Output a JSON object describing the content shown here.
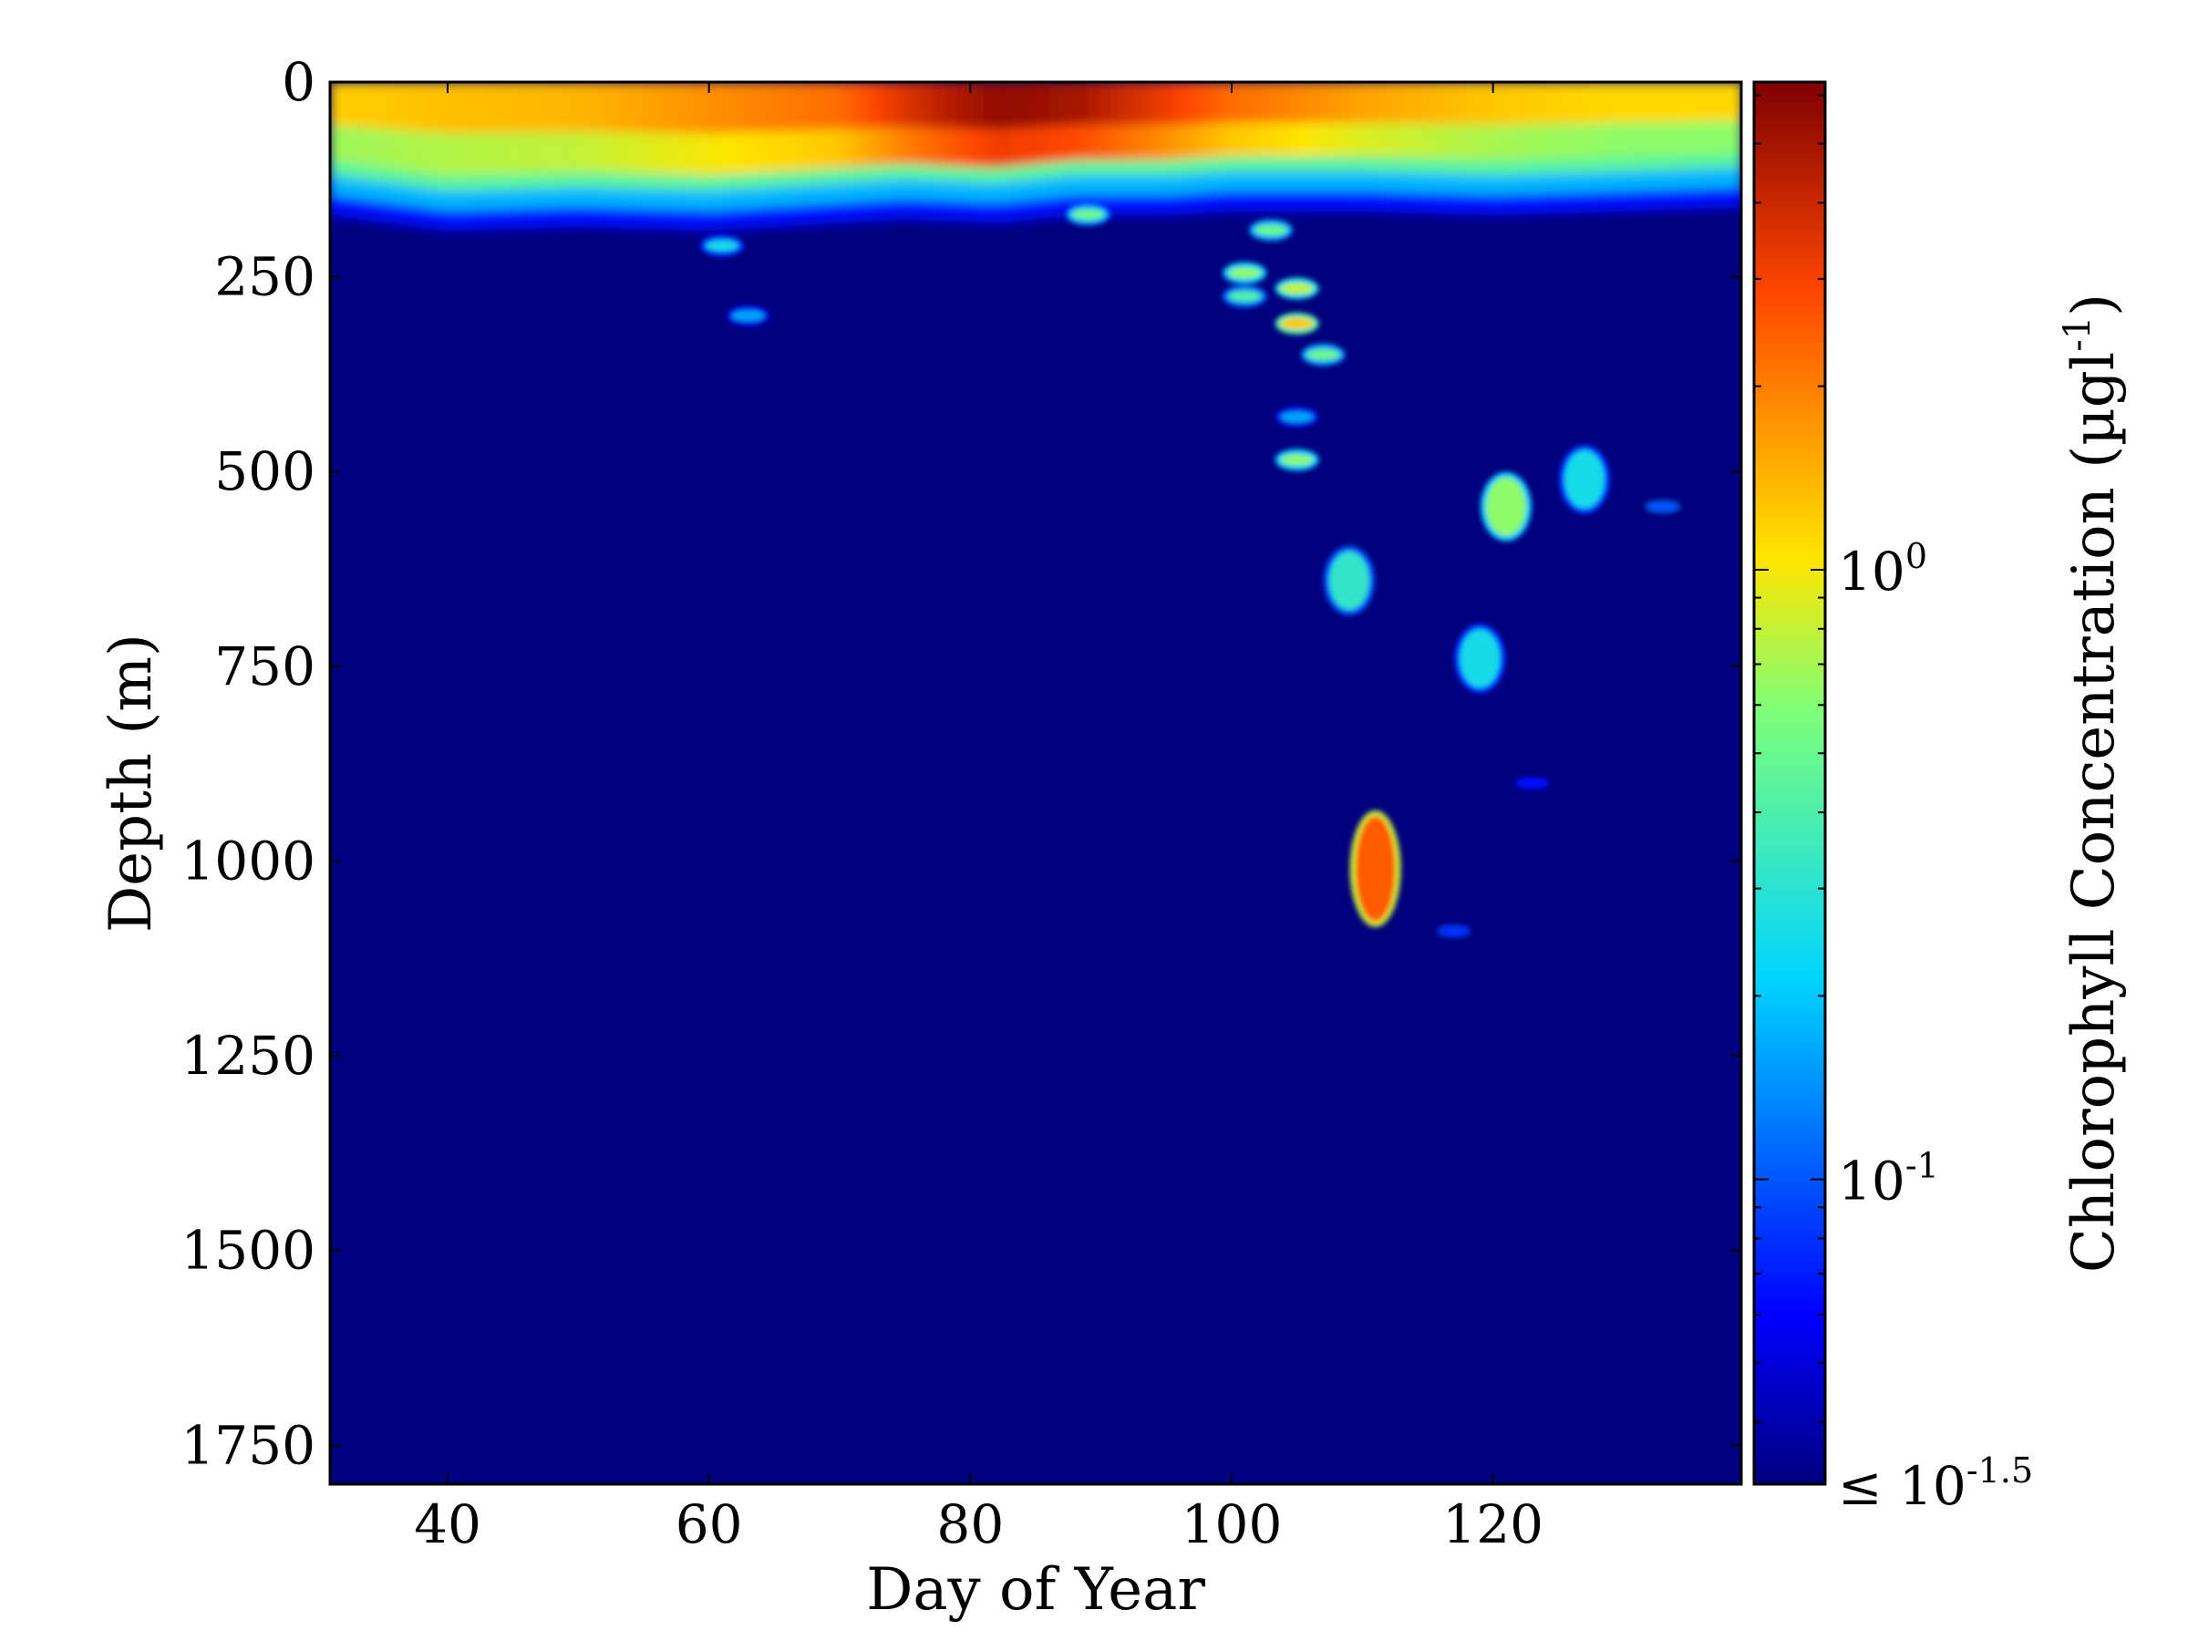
{
  "chart_data": {
    "type": "heatmap",
    "xlabel": "Day of Year",
    "ylabel": "Depth (m)",
    "xlim": [
      31,
      139
    ],
    "ylim": [
      1800,
      0
    ],
    "x_ticks": [
      40,
      60,
      80,
      100,
      120
    ],
    "y_ticks": [
      0,
      250,
      500,
      750,
      1000,
      1250,
      1500,
      1750
    ],
    "colorbar": {
      "label": "Chlorophyll Concentration (µgl-1)",
      "scale": "log",
      "colormap": "jet",
      "range_log10": [
        -1.5,
        0.8
      ],
      "tick_labels": [
        "10^0",
        "10^-1",
        "≤ 10^-1.5"
      ],
      "tick_log10": [
        0,
        -1,
        -1.5
      ]
    },
    "background_log10": -1.5,
    "surface_layer": {
      "description_depth_range_m": [
        0,
        160
      ],
      "profile": [
        {
          "day": 31,
          "mixed_depth": 100,
          "log10": 0.08
        },
        {
          "day": 40,
          "mixed_depth": 120,
          "log10": 0.12
        },
        {
          "day": 50,
          "mixed_depth": 115,
          "log10": 0.15
        },
        {
          "day": 60,
          "mixed_depth": 120,
          "log10": 0.25
        },
        {
          "day": 70,
          "mixed_depth": 110,
          "log10": 0.35
        },
        {
          "day": 75,
          "mixed_depth": 105,
          "log10": 0.55
        },
        {
          "day": 82,
          "mixed_depth": 110,
          "log10": 0.75
        },
        {
          "day": 88,
          "mixed_depth": 100,
          "log10": 0.7
        },
        {
          "day": 95,
          "mixed_depth": 100,
          "log10": 0.5
        },
        {
          "day": 100,
          "mixed_depth": 95,
          "log10": 0.35
        },
        {
          "day": 110,
          "mixed_depth": 95,
          "log10": 0.2
        },
        {
          "day": 120,
          "mixed_depth": 100,
          "log10": 0.1
        },
        {
          "day": 130,
          "mixed_depth": 95,
          "log10": 0.05
        },
        {
          "day": 139,
          "mixed_depth": 90,
          "log10": 0.05
        }
      ]
    },
    "patches": [
      {
        "day": 61,
        "depth": 210,
        "log10": -0.6
      },
      {
        "day": 63,
        "depth": 300,
        "log10": -0.8
      },
      {
        "day": 89,
        "depth": 170,
        "log10": -0.3
      },
      {
        "day": 103,
        "depth": 190,
        "log10": -0.3
      },
      {
        "day": 101,
        "depth": 245,
        "log10": -0.2
      },
      {
        "day": 101,
        "depth": 275,
        "log10": -0.4
      },
      {
        "day": 105,
        "depth": 265,
        "log10": -0.1
      },
      {
        "day": 105,
        "depth": 310,
        "log10": 0.1
      },
      {
        "day": 107,
        "depth": 350,
        "log10": -0.3
      },
      {
        "day": 105,
        "depth": 430,
        "log10": -0.8
      },
      {
        "day": 105,
        "depth": 485,
        "log10": -0.2
      },
      {
        "day": 121,
        "depth": 545,
        "log10": -0.2
      },
      {
        "day": 127,
        "depth": 510,
        "log10": -0.6
      },
      {
        "day": 133,
        "depth": 545,
        "log10": -1.0
      },
      {
        "day": 109,
        "depth": 640,
        "log10": -0.5
      },
      {
        "day": 119,
        "depth": 740,
        "log10": -0.6
      },
      {
        "day": 123,
        "depth": 900,
        "log10": -1.2
      },
      {
        "day": 111,
        "depth": 1010,
        "log10": 0.4
      },
      {
        "day": 117,
        "depth": 1090,
        "log10": -1.1
      }
    ]
  }
}
